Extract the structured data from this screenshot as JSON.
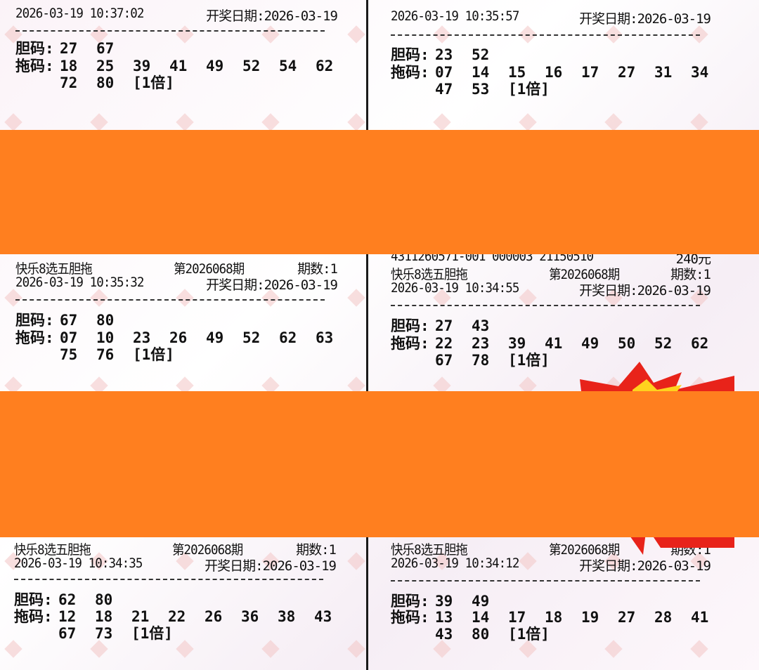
{
  "colors": {
    "redaction_bar": "#ff7f1f",
    "burst_red": "#e8231a",
    "burst_yellow": "#ffd21e"
  },
  "tickets": [
    {
      "serial": "",
      "game": "",
      "issue": "",
      "periods": "",
      "time": "2026-03-19 10:37:02",
      "draw_date": "开奖日期:2026-03-19",
      "dan_label": "胆码:",
      "dan": [
        "27",
        "67"
      ],
      "tuo_label": "拖码:",
      "tuo": [
        "18",
        "25",
        "39",
        "41",
        "49",
        "52",
        "54",
        "62",
        "72",
        "80"
      ],
      "multiple": "[1倍]"
    },
    {
      "serial": "",
      "game": "",
      "issue": "",
      "periods": "",
      "time": "2026-03-19 10:35:57",
      "draw_date": "开奖日期:2026-03-19",
      "dan_label": "胆码:",
      "dan": [
        "23",
        "52"
      ],
      "tuo_label": "拖码:",
      "tuo": [
        "07",
        "14",
        "15",
        "16",
        "17",
        "27",
        "31",
        "34",
        "47",
        "53"
      ],
      "multiple": "[1倍]"
    },
    {
      "serial": "",
      "game": "快乐8选五胆拖",
      "issue": "第2026068期",
      "periods": "期数:1",
      "time": "2026-03-19 10:35:32",
      "draw_date": "开奖日期:2026-03-19",
      "dan_label": "胆码:",
      "dan": [
        "67",
        "80"
      ],
      "tuo_label": "拖码:",
      "tuo": [
        "07",
        "10",
        "23",
        "26",
        "49",
        "52",
        "62",
        "63",
        "75",
        "76"
      ],
      "multiple": "[1倍]"
    },
    {
      "serial": "4311260571-001 000003 21150510",
      "amount": "240元",
      "game": "快乐8选五胆拖",
      "issue": "第2026068期",
      "periods": "期数:1",
      "time": "2026-03-19 10:34:55",
      "draw_date": "开奖日期:2026-03-19",
      "dan_label": "胆码:",
      "dan": [
        "27",
        "43"
      ],
      "tuo_label": "拖码:",
      "tuo": [
        "22",
        "23",
        "39",
        "41",
        "49",
        "50",
        "52",
        "62",
        "67",
        "78"
      ],
      "multiple": "[1倍]"
    },
    {
      "serial": "",
      "game": "快乐8选五胆拖",
      "issue": "第2026068期",
      "periods": "期数:1",
      "time": "2026-03-19 10:34:35",
      "draw_date": "开奖日期:2026-03-19",
      "dan_label": "胆码:",
      "dan": [
        "62",
        "80"
      ],
      "tuo_label": "拖码:",
      "tuo": [
        "12",
        "18",
        "21",
        "22",
        "26",
        "36",
        "38",
        "43",
        "67",
        "73"
      ],
      "multiple": "[1倍]"
    },
    {
      "serial": "",
      "game": "快乐8选五胆拖",
      "issue": "第2026068期",
      "periods": "期数:1",
      "time": "2026-03-19 10:34:12",
      "draw_date": "开奖日期:2026-03-19",
      "dan_label": "胆码:",
      "dan": [
        "39",
        "49"
      ],
      "tuo_label": "拖码:",
      "tuo": [
        "13",
        "14",
        "17",
        "18",
        "19",
        "27",
        "28",
        "41",
        "43",
        "80"
      ],
      "multiple": "[1倍]"
    }
  ]
}
